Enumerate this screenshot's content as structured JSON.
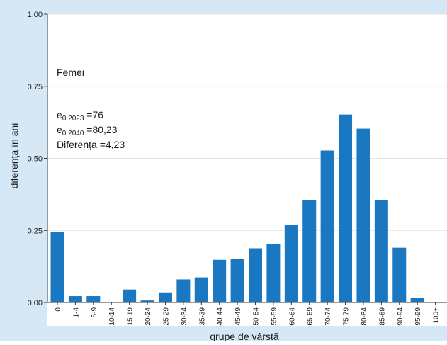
{
  "chart_data": {
    "type": "bar",
    "title": "",
    "annotation_title": "Femei",
    "annotation_lines": [
      {
        "prefix": "e",
        "sub": "0 2023",
        "rest": " =76"
      },
      {
        "prefix": "e",
        "sub": "0 2040",
        "rest": " =80,23"
      },
      {
        "prefix": "Diferența =4,23",
        "sub": "",
        "rest": ""
      }
    ],
    "xlabel": "grupe de vârstă",
    "ylabel": "diferența în ani",
    "ylim": [
      0,
      1.0
    ],
    "yticks": [
      "0,00",
      "0,25",
      "0,50",
      "0,75",
      "1,00"
    ],
    "ytick_values": [
      0,
      0.25,
      0.5,
      0.75,
      1.0
    ],
    "categories": [
      "0",
      "1-4",
      "5-9",
      "10-14",
      "15-19",
      "20-24",
      "25-29",
      "30-34",
      "35-39",
      "40-44",
      "45-49",
      "50-54",
      "55-59",
      "60-64",
      "65-69",
      "70-74",
      "75-79",
      "80-84",
      "85-89",
      "90-94",
      "95-99",
      "100+"
    ],
    "values": [
      0.245,
      0.022,
      0.022,
      0.0,
      0.045,
      0.007,
      0.035,
      0.08,
      0.087,
      0.148,
      0.15,
      0.188,
      0.202,
      0.268,
      0.355,
      0.527,
      0.652,
      0.603,
      0.355,
      0.19,
      0.017,
      0.0
    ],
    "bar_color": "#1a78c2",
    "grid": true,
    "legend": "none"
  }
}
